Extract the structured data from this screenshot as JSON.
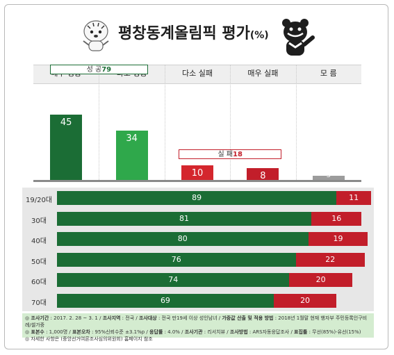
{
  "title": "평창동계올림픽 평가",
  "title_unit": "(%)",
  "chart_data": [
    {
      "type": "bar",
      "categories": [
        "매우 성공",
        "다소 성공",
        "다소 실패",
        "매우 실패",
        "모 름"
      ],
      "values": [
        45,
        34,
        10,
        8,
        3
      ],
      "value_labels": [
        "45",
        "34",
        "10",
        "8",
        "3"
      ],
      "colors": [
        "#1b6d35",
        "#2fa84b",
        "#d4262d",
        "#c21e2a",
        "#9c9c9c"
      ],
      "groups": [
        {
          "label": "성 공",
          "value": "79",
          "color": "#1b6d35"
        },
        {
          "label": "실 패",
          "value": "18",
          "color": "#c21e2a"
        }
      ]
    },
    {
      "type": "bar",
      "orientation": "horizontal",
      "stacked": true,
      "categories": [
        "19/20대",
        "30대",
        "40대",
        "50대",
        "60대",
        "70대"
      ],
      "series": [
        {
          "color": "#1b6d35",
          "values": [
            89,
            81,
            80,
            76,
            74,
            69
          ]
        },
        {
          "color": "#c21e2a",
          "values": [
            11,
            16,
            19,
            22,
            20,
            20
          ]
        }
      ]
    }
  ],
  "footer": {
    "line1": [
      {
        "label": "◎ 조사기간",
        "text": " : 2017. 2. 28 ~ 3. 1 / "
      },
      {
        "label": "조사지역",
        "text": " : 전국 / "
      },
      {
        "label": "조사대상",
        "text": " : 전국 만19세 이상 성인남녀 / "
      },
      {
        "label": "가중값 산출 및 적용 방법",
        "text": " : 2018년 1월말 현재 행자부 주민등록인구비례/셀가중"
      }
    ],
    "line2": [
      {
        "label": "◎ 표본수",
        "text": " : 1,000명 / "
      },
      {
        "label": "표본오차",
        "text": " : 95%신뢰수준 ±3.1%p / "
      },
      {
        "label": "응답률",
        "text": " : 4.0% / "
      },
      {
        "label": "조사기관",
        "text": " : 리서치뷰 / "
      },
      {
        "label": "조사방법",
        "text": " : ARS자동응답조사 / "
      },
      {
        "label": "표집틀",
        "text": " : 무선(85%)-유선(15%)"
      }
    ],
    "line3": "◎ 자세한 사항은 (중앙선거여론조사심의위원회) 홈페이지 참조"
  }
}
